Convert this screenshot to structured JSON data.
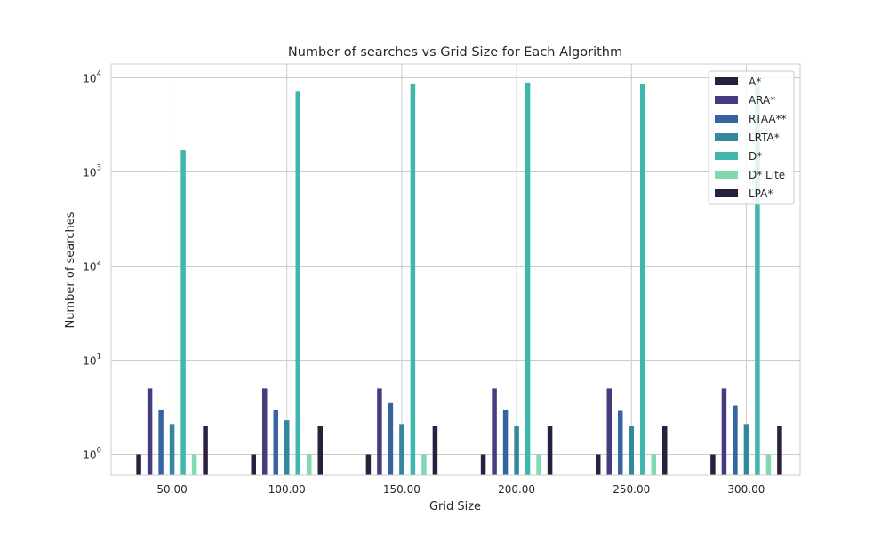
{
  "chart_data": {
    "type": "bar",
    "title": "Number of searches vs Grid Size for Each Algorithm",
    "xlabel": "Grid Size",
    "ylabel": "Number of searches",
    "yscale": "log",
    "ylim": [
      0.6,
      14000
    ],
    "categories": [
      "50.00",
      "100.00",
      "150.00",
      "200.00",
      "250.00",
      "300.00"
    ],
    "ytick_labels": [
      {
        "base": "10",
        "exp": "0",
        "value": 1
      },
      {
        "base": "10",
        "exp": "1",
        "value": 10
      },
      {
        "base": "10",
        "exp": "2",
        "value": 100
      },
      {
        "base": "10",
        "exp": "3",
        "value": 1000
      },
      {
        "base": "10",
        "exp": "4",
        "value": 10000
      }
    ],
    "grid": true,
    "legend_position": "top-right",
    "series": [
      {
        "name": "A*",
        "color": "#2a1f3d",
        "values": [
          1,
          1,
          1,
          1,
          1,
          1
        ]
      },
      {
        "name": "ARA*",
        "color": "#433d7d",
        "values": [
          5,
          5,
          5,
          5,
          5,
          5
        ]
      },
      {
        "name": "RTAA**",
        "color": "#3564a1",
        "values": [
          3,
          3,
          3.5,
          3,
          2.9,
          3.3
        ]
      },
      {
        "name": "LRTA*",
        "color": "#31879e",
        "values": [
          2.1,
          2.3,
          2.1,
          2,
          2,
          2.1
        ]
      },
      {
        "name": "D*",
        "color": "#40b7ad",
        "values": [
          1700,
          7100,
          8700,
          8900,
          8500,
          8800
        ]
      },
      {
        "name": "D* Lite",
        "color": "#82d8b0",
        "values": [
          1,
          1,
          1,
          1,
          1,
          1
        ]
      },
      {
        "name": "LPA*",
        "color": "#2a1f3d",
        "values": [
          2,
          2,
          2,
          2,
          2,
          2
        ]
      }
    ]
  }
}
